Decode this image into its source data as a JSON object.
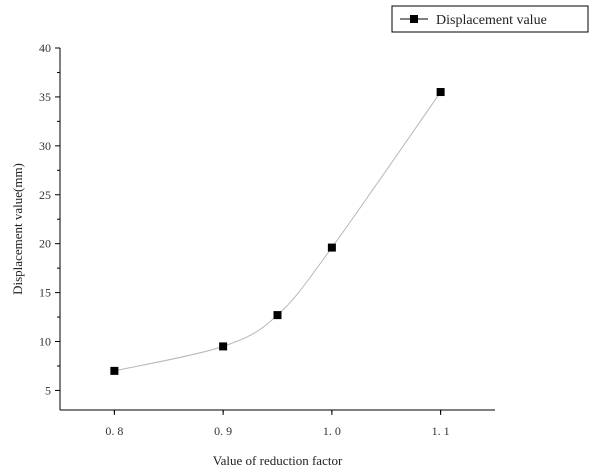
{
  "chart_data": {
    "type": "line",
    "x": [
      0.8,
      0.9,
      0.95,
      1.0,
      1.1
    ],
    "series": [
      {
        "name": "Displacement value",
        "values": [
          7.0,
          9.5,
          12.7,
          19.6,
          35.5
        ],
        "color": "#000000",
        "marker": "square"
      }
    ],
    "xlabel": "Value of reduction factor",
    "ylabel": "Displacement value(mm)",
    "xlim": [
      0.75,
      1.15
    ],
    "ylim": [
      3,
      40
    ],
    "x_ticks": [
      0.8,
      0.9,
      1.0,
      1.1
    ],
    "x_tick_labels": [
      "0. 8",
      "0. 9",
      "1. 0",
      "1. 1"
    ],
    "y_ticks": [
      5,
      10,
      15,
      20,
      25,
      30,
      35,
      40
    ],
    "y_tick_labels": [
      "5",
      "10",
      "15",
      "20",
      "25",
      "30",
      "35",
      "40"
    ],
    "grid": false,
    "legend": {
      "placement": "top-right",
      "label": "Displacement value"
    },
    "curve_color": "#b8b8b8"
  }
}
